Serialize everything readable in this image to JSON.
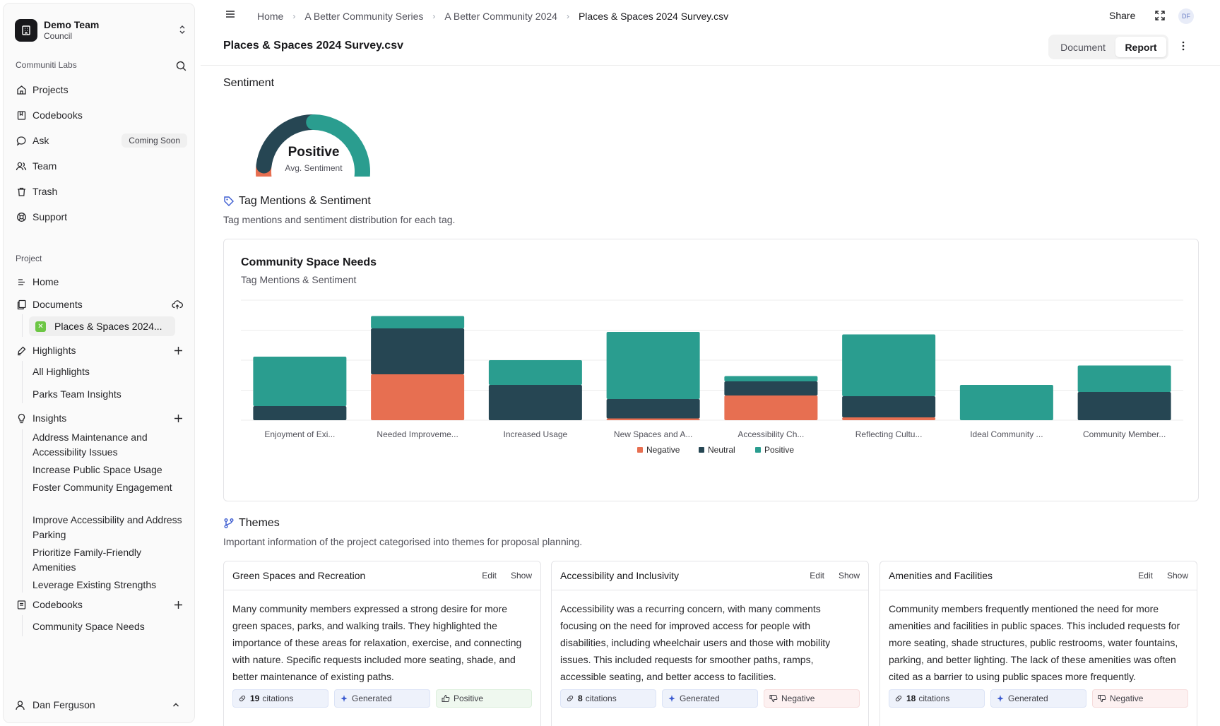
{
  "sidebar": {
    "team_name": "Demo Team",
    "team_sub": "Council",
    "org_label": "Communiti Labs",
    "org_items": [
      {
        "label": "Projects",
        "icon": "home-icon"
      },
      {
        "label": "Codebooks",
        "icon": "book-icon"
      },
      {
        "label": "Ask",
        "icon": "chat-icon",
        "badge": "Coming Soon"
      },
      {
        "label": "Team",
        "icon": "users-icon"
      },
      {
        "label": "Trash",
        "icon": "trash-icon"
      },
      {
        "label": "Support",
        "icon": "lifebuoy-icon"
      }
    ],
    "project_label": "Project",
    "home": "Home",
    "documents": "Documents",
    "active_doc": "Places & Spaces 2024...",
    "highlights": "Highlights",
    "highlight_items": [
      "All Highlights",
      "Parks Team Insights"
    ],
    "insights": "Insights",
    "insight_items": [
      "Address Maintenance and Accessibility Issues",
      "Increase Public Space Usage",
      "Foster Community Engagement",
      "Improve Accessibility and Address Parking",
      "Prioritize Family-Friendly Amenities",
      "Leverage Existing Strengths"
    ],
    "codebooks": "Codebooks",
    "codebook_items": [
      "Community Space Needs"
    ],
    "user": "Dan Ferguson"
  },
  "breadcrumb": [
    "Home",
    "A Better Community Series",
    "A Better Community 2024",
    "Places & Spaces 2024 Survey.csv"
  ],
  "header": {
    "share": "Share",
    "avatar_initials": "DF",
    "title": "Places & Spaces 2024 Survey.csv",
    "tab_document": "Document",
    "tab_report": "Report"
  },
  "sentiment": {
    "heading": "Sentiment",
    "label": "Positive",
    "sub": "Avg. Sentiment",
    "shares": {
      "negative": 0.08,
      "neutral": 0.42,
      "positive": 0.5
    }
  },
  "tags_section": {
    "heading": "Tag Mentions & Sentiment",
    "desc": "Tag mentions and sentiment distribution for each tag."
  },
  "chart_data": {
    "type": "bar",
    "stacked": true,
    "title": "Community Space Needs",
    "subtitle": "Tag Mentions & Sentiment",
    "categories": [
      "Enjoyment of Exi...",
      "Needed Improveme...",
      "Increased Usage",
      "New Spaces and A...",
      "Accessibility Ch...",
      "Reflecting Cultu...",
      "Ideal Community ...",
      "Community Member..."
    ],
    "series": [
      {
        "name": "Negative",
        "color": "#e76f51",
        "values": [
          0,
          13,
          0,
          0.5,
          7,
          0.8,
          0,
          0
        ]
      },
      {
        "name": "Neutral",
        "color": "#264653",
        "values": [
          4,
          13,
          10,
          5.5,
          4,
          6,
          0,
          8
        ]
      },
      {
        "name": "Positive",
        "color": "#2a9d8f",
        "values": [
          14,
          3.5,
          7,
          19,
          1.5,
          17.5,
          10,
          7.5
        ]
      }
    ],
    "ylim": [
      0,
      34
    ],
    "grid": true,
    "legend": "bottom"
  },
  "themes_section": {
    "heading": "Themes",
    "desc": "Important information of the project categorised into themes for proposal planning.",
    "edit": "Edit",
    "show": "Show",
    "generated": "Generated",
    "citations_word": "citations",
    "cards": [
      {
        "title": "Green Spaces and Recreation",
        "body": "Many community members expressed a strong desire for more green spaces, parks, and walking trails. They highlighted the importance of these areas for relaxation, exercise, and connecting with nature. Specific requests included more seating, shade, and better maintenance of existing paths.",
        "citations": "19",
        "sentiment": "Positive"
      },
      {
        "title": "Accessibility and Inclusivity",
        "body": "Accessibility was a recurring concern, with many comments focusing on the need for improved access for people with disabilities, including wheelchair users and those with mobility issues. This included requests for smoother paths, ramps, accessible seating, and better access to facilities.",
        "citations": "8",
        "sentiment": "Negative"
      },
      {
        "title": "Amenities and Facilities",
        "body": "Community members frequently mentioned the need for more amenities and facilities in public spaces. This included requests for more seating, shade structures, public restrooms, water fountains, parking, and better lighting. The lack of these amenities was often cited as a barrier to using public spaces more frequently.",
        "citations": "18",
        "sentiment": "Negative"
      }
    ]
  }
}
